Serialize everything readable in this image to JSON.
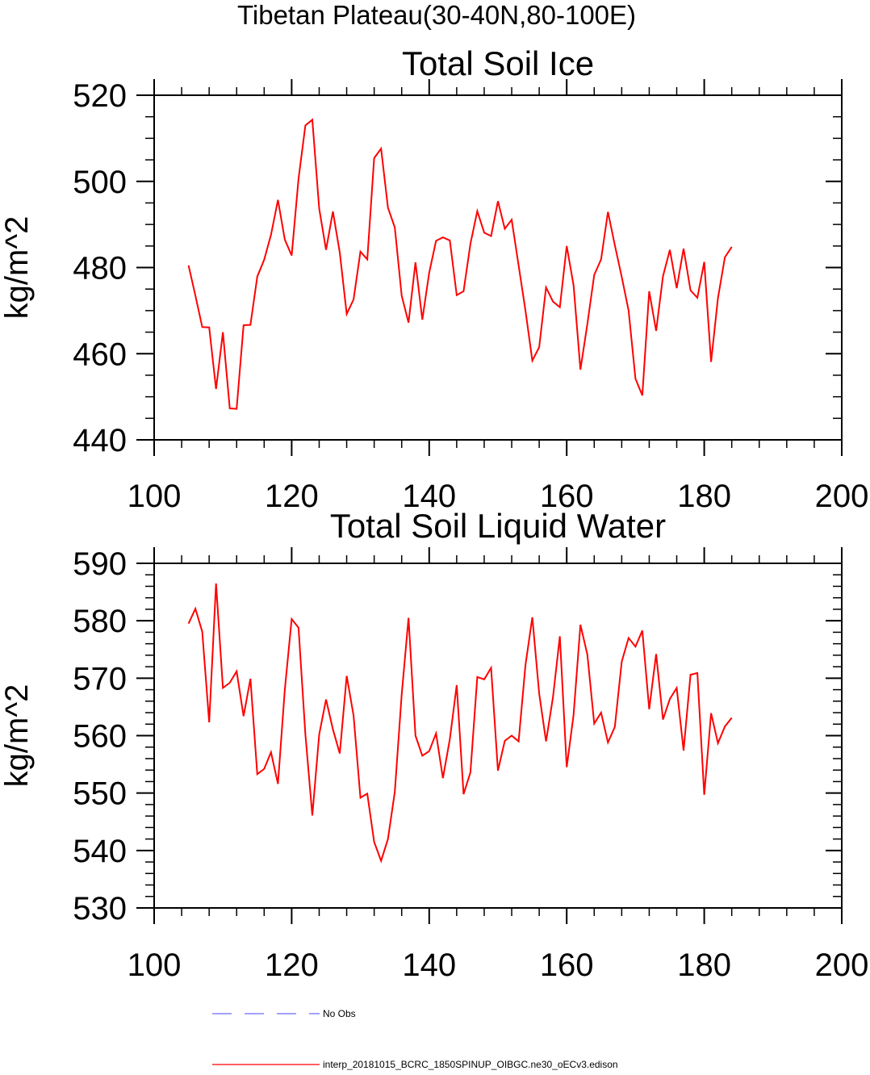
{
  "figure_title": "Tibetan Plateau(30-40N,80-100E)",
  "chart_data": [
    {
      "type": "line",
      "title": "Total Soil Ice",
      "xlabel": "",
      "ylabel": "kg/m^2",
      "xlim": [
        100,
        200
      ],
      "ylim": [
        440,
        520
      ],
      "xticks": [
        100,
        120,
        140,
        160,
        180,
        200
      ],
      "yticks": [
        440,
        460,
        480,
        500,
        520
      ],
      "xminor": 5,
      "yminor": 4,
      "series": [
        {
          "name": "interp_20181015_BCRC_1850SPINUP_OIBGC.ne30_oECv3.edison",
          "color": "#ff0000",
          "x": [
            105,
            106,
            107,
            108,
            109,
            110,
            111,
            112,
            113,
            114,
            115,
            116,
            117,
            118,
            119,
            120,
            121,
            122,
            123,
            124,
            125,
            126,
            127,
            128,
            129,
            130,
            131,
            132,
            133,
            134,
            135,
            136,
            137,
            138,
            139,
            140,
            141,
            142,
            143,
            144,
            145,
            146,
            147,
            148,
            149,
            150,
            151,
            152,
            153,
            154,
            155,
            156,
            157,
            158,
            159,
            160,
            161,
            162,
            163,
            164,
            165,
            166,
            167,
            168,
            169,
            170,
            171,
            172,
            173,
            174,
            175,
            176,
            177,
            178,
            179,
            180,
            181,
            182,
            183,
            184
          ],
          "values": [
            480.5,
            473.5,
            466.2,
            466.1,
            451.8,
            465,
            447.3,
            447.2,
            466.6,
            466.7,
            477.9,
            481.8,
            487.6,
            495.7,
            486.5,
            482.8,
            500.6,
            513,
            514.3,
            493.7,
            484.1,
            493,
            483.5,
            469.2,
            472.6,
            483.7,
            481.9,
            505.4,
            507.6,
            493.9,
            489.3,
            473.5,
            467.2,
            481.2,
            467.9,
            478.8,
            486.2,
            487,
            486.3,
            473.6,
            474.5,
            485.5,
            493.1,
            488.1,
            487.3,
            495.4,
            489,
            491.1,
            480.5,
            470,
            458.4,
            461.5,
            475.4,
            472.1,
            470.8,
            485,
            475.9,
            456.3,
            466.9,
            478.3,
            481.9,
            492.9,
            485.2,
            477.8,
            470,
            454.2,
            450.3,
            474.5,
            465.3,
            478,
            484.1,
            475.2,
            484.4,
            474.7,
            473,
            481.3,
            458.1,
            472.9,
            482.4,
            484.8
          ]
        }
      ]
    },
    {
      "type": "line",
      "title": "Total Soil Liquid Water",
      "xlabel": "",
      "ylabel": "kg/m^2",
      "xlim": [
        100,
        200
      ],
      "ylim": [
        530,
        590
      ],
      "xticks": [
        100,
        120,
        140,
        160,
        180,
        200
      ],
      "yticks": [
        530,
        540,
        550,
        560,
        570,
        580,
        590
      ],
      "xminor": 5,
      "yminor": 5,
      "series": [
        {
          "name": "interp_20181015_BCRC_1850SPINUP_OIBGC.ne30_oECv3.edison",
          "color": "#ff0000",
          "x": [
            105,
            106,
            107,
            108,
            109,
            110,
            111,
            112,
            113,
            114,
            115,
            116,
            117,
            118,
            119,
            120,
            121,
            122,
            123,
            124,
            125,
            126,
            127,
            128,
            129,
            130,
            131,
            132,
            133,
            134,
            135,
            136,
            137,
            138,
            139,
            140,
            141,
            142,
            143,
            144,
            145,
            146,
            147,
            148,
            149,
            150,
            151,
            152,
            153,
            154,
            155,
            156,
            157,
            158,
            159,
            160,
            161,
            162,
            163,
            164,
            165,
            166,
            167,
            168,
            169,
            170,
            171,
            172,
            173,
            174,
            175,
            176,
            177,
            178,
            179,
            180,
            181,
            182,
            183,
            184
          ],
          "values": [
            579.5,
            582.1,
            578.1,
            562.3,
            586.5,
            568.3,
            569.2,
            571.2,
            563.4,
            569.9,
            553.3,
            554.2,
            557.1,
            551.6,
            568,
            580.3,
            578.8,
            560.2,
            546.1,
            560.2,
            566.3,
            561.1,
            556.9,
            570.4,
            563.5,
            549.2,
            549.9,
            541.5,
            538.2,
            542,
            550.2,
            567.1,
            580.5,
            560,
            556.5,
            557.3,
            560.4,
            552.6,
            559.4,
            568.8,
            549.8,
            553.6,
            570.2,
            569.8,
            571.8,
            553.9,
            559.1,
            560,
            559,
            572.3,
            580.6,
            567.3,
            559,
            566.7,
            577.3,
            554.5,
            563.6,
            579.3,
            574.1,
            562.1,
            564,
            558.8,
            561.5,
            572.9,
            577,
            575.5,
            578.3,
            564.6,
            574.2,
            562.8,
            566.4,
            568.3,
            557.4,
            570.6,
            570.9,
            549.7,
            563.9,
            558.7,
            561.6,
            563.1
          ]
        }
      ]
    }
  ],
  "legend": [
    {
      "label": "No Obs",
      "color": "#6b6bff",
      "style": "dashed"
    },
    {
      "label": "interp_20181015_BCRC_1850SPINUP_OIBGC.ne30_oECv3.edison",
      "color": "#ff0000",
      "style": "solid"
    }
  ]
}
